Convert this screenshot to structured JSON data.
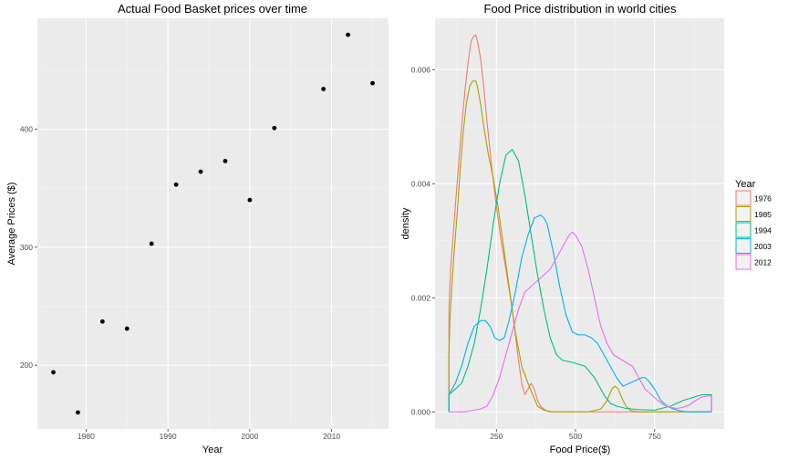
{
  "chart_data": [
    {
      "type": "scatter",
      "title": "Actual Food Basket prices over time",
      "xlabel": "Year",
      "ylabel": "Average Prices ($)",
      "xlim": [
        1974.05,
        2016.95
      ],
      "ylim": [
        146,
        494
      ],
      "xticks": [
        1980,
        1990,
        2000,
        2010
      ],
      "yticks": [
        200,
        300,
        400
      ],
      "grid": true,
      "point_color": "#000000",
      "x": [
        1976,
        1979,
        1982,
        1985,
        1988,
        1991,
        1994,
        1997,
        2000,
        2003,
        2009,
        2012,
        2015
      ],
      "y": [
        194,
        160,
        237,
        231,
        303,
        353,
        364,
        373,
        340,
        401,
        434,
        480,
        439
      ]
    },
    {
      "type": "line",
      "title": "Food Price distribution in world cities",
      "xlabel": "Food Price($)",
      "ylabel": "density",
      "xlim": [
        56,
        970
      ],
      "ylim": [
        -0.0003,
        0.0069
      ],
      "xticks": [
        250,
        500,
        750
      ],
      "yticks": [
        0,
        0.002,
        0.004,
        0.006
      ],
      "ytick_labels": [
        "0.000",
        "0.002",
        "0.004",
        "0.006"
      ],
      "grid": true,
      "legend_title": "Year",
      "legend_position": "right",
      "series": [
        {
          "name": "1976",
          "color": "#F8766D",
          "x": [
            100,
            105,
            112,
            120,
            130,
            140,
            150,
            160,
            170,
            180,
            185,
            190,
            200,
            210,
            220,
            235,
            250,
            265,
            280,
            300,
            320,
            330,
            340,
            350,
            360,
            370,
            380,
            390,
            400,
            410,
            430,
            470,
            930
          ],
          "y": [
            0.0018,
            0.0025,
            0.003,
            0.0036,
            0.0043,
            0.005,
            0.0056,
            0.0061,
            0.0065,
            0.0066,
            0.0066,
            0.0065,
            0.0062,
            0.0057,
            0.0051,
            0.0043,
            0.0036,
            0.003,
            0.0025,
            0.0018,
            0.0009,
            0.0005,
            0.0003,
            0.0004,
            0.0005,
            0.0004,
            0.0002,
            0.0001,
            5e-05,
            2e-05,
            0,
            0,
            0
          ]
        },
        {
          "name": "1985",
          "color": "#A3A500",
          "x": [
            100,
            103,
            108,
            115,
            125,
            135,
            145,
            155,
            165,
            175,
            185,
            190,
            200,
            210,
            225,
            240,
            255,
            270,
            290,
            310,
            330,
            350,
            365,
            380,
            400,
            420,
            440,
            480,
            540,
            580,
            600,
            615,
            625,
            635,
            650,
            660,
            675,
            700,
            930
          ],
          "y": [
            0.001,
            0.0016,
            0.0021,
            0.0027,
            0.0034,
            0.0042,
            0.0049,
            0.0054,
            0.0057,
            0.0058,
            0.0058,
            0.0057,
            0.0054,
            0.005,
            0.0045,
            0.0041,
            0.0036,
            0.003,
            0.0022,
            0.0014,
            0.0008,
            0.0005,
            0.0003,
            0.0001,
            3e-05,
            0,
            0,
            0,
            0,
            5e-05,
            0.0002,
            0.0004,
            0.00045,
            0.0004,
            0.0002,
            0.0001,
            2e-05,
            0,
            0
          ]
        },
        {
          "name": "1994",
          "color": "#00BF7D",
          "x": [
            100,
            120,
            140,
            160,
            180,
            200,
            220,
            240,
            260,
            280,
            300,
            320,
            340,
            360,
            380,
            400,
            420,
            440,
            460,
            480,
            500,
            530,
            560,
            590,
            610,
            630,
            660,
            700,
            750,
            800,
            840,
            870,
            900,
            930
          ],
          "y": [
            0.0003,
            0.0004,
            0.0005,
            0.0008,
            0.0012,
            0.0018,
            0.0025,
            0.0033,
            0.004,
            0.0045,
            0.0046,
            0.0044,
            0.0038,
            0.0031,
            0.0024,
            0.0018,
            0.0013,
            0.001,
            0.0009,
            0.00088,
            0.00085,
            0.0008,
            0.0006,
            0.0003,
            0.00015,
            0.0001,
            6e-05,
            4e-05,
            3e-05,
            0.0001,
            0.0002,
            0.00025,
            0.0003,
            0.0003
          ]
        },
        {
          "name": "2003",
          "color": "#00B0F6",
          "x": [
            100,
            120,
            140,
            160,
            180,
            200,
            215,
            230,
            245,
            260,
            275,
            290,
            310,
            330,
            350,
            370,
            390,
            400,
            410,
            430,
            450,
            470,
            490,
            510,
            530,
            550,
            570,
            590,
            610,
            630,
            650,
            670,
            690,
            710,
            720,
            730,
            750,
            770,
            790,
            810,
            830,
            850,
            870,
            890,
            910,
            930
          ],
          "y": [
            0.0003,
            0.0005,
            0.0008,
            0.0012,
            0.0015,
            0.0016,
            0.0016,
            0.0015,
            0.0013,
            0.00125,
            0.0013,
            0.0016,
            0.0021,
            0.0027,
            0.0031,
            0.0034,
            0.00345,
            0.0034,
            0.0033,
            0.0028,
            0.0022,
            0.0017,
            0.0014,
            0.00135,
            0.00135,
            0.0013,
            0.0012,
            0.001,
            0.0008,
            0.0006,
            0.00045,
            0.0005,
            0.00055,
            0.0006,
            0.0006,
            0.00055,
            0.0004,
            0.0002,
            0.0001,
            5e-05,
            2e-05,
            0,
            0,
            0,
            0,
            0
          ]
        },
        {
          "name": "2012",
          "color": "#E76BF3",
          "x": [
            100,
            150,
            200,
            220,
            240,
            260,
            280,
            300,
            320,
            340,
            360,
            380,
            400,
            420,
            440,
            460,
            480,
            490,
            500,
            520,
            540,
            560,
            580,
            600,
            620,
            650,
            680,
            700,
            720,
            740,
            760,
            780,
            800,
            820,
            840,
            860,
            880,
            900,
            920,
            930
          ],
          "y": [
            0,
            0,
            5e-05,
            0.0001,
            0.0003,
            0.0006,
            0.001,
            0.0014,
            0.0018,
            0.0021,
            0.0022,
            0.0023,
            0.0024,
            0.0025,
            0.0027,
            0.0029,
            0.0031,
            0.00315,
            0.0031,
            0.0029,
            0.0025,
            0.002,
            0.0015,
            0.0012,
            0.001,
            0.0009,
            0.0008,
            0.0006,
            0.0004,
            0.0003,
            0.0002,
            0.00012,
            8e-05,
            6e-05,
            8e-05,
            0.00012,
            0.0002,
            0.00026,
            0.00028,
            0.00028
          ]
        }
      ]
    }
  ]
}
